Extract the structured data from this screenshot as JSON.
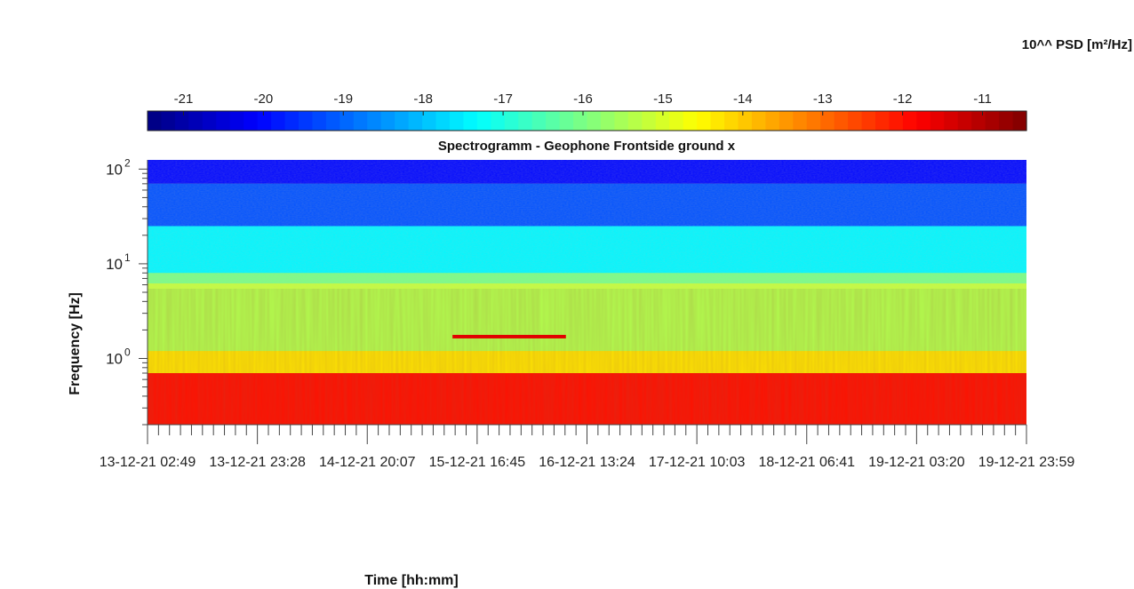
{
  "chart_data": {
    "type": "heatmap",
    "title": "Spectrogramm - Geophone Frontside ground x",
    "xlabel": "Time [hh:mm]",
    "ylabel": "Frequency [Hz]",
    "yscale": "log",
    "ylim": [
      0.2,
      125
    ],
    "xlim": [
      0,
      1
    ],
    "x_tick_labels": [
      "13-12-21  02:49",
      "13-12-21  23:28",
      "14-12-21  20:07",
      "15-12-21  16:45",
      "16-12-21  13:24",
      "17-12-21  10:03",
      "18-12-21  06:41",
      "19-12-21  03:20",
      "19-12-21  23:59"
    ],
    "y_tick_labels": [
      {
        "value": 1,
        "base": "10",
        "exp": "0"
      },
      {
        "value": 10,
        "base": "10",
        "exp": "1"
      },
      {
        "value": 100,
        "base": "10",
        "exp": "2"
      }
    ],
    "colorbar": {
      "label": "10^^ PSD [m²/Hz]",
      "min": -21.45,
      "max": -10.45,
      "ticks": [
        "-21",
        "-20",
        "-19",
        "-18",
        "-17",
        "-16",
        "-15",
        "-14",
        "-13",
        "-12",
        "-11"
      ],
      "colormap": "jet",
      "placement": "top"
    },
    "grid": false,
    "features": {
      "band_levels": [
        {
          "f_min": 70,
          "f_max": 125,
          "log_psd": -20.0
        },
        {
          "f_min": 25,
          "f_max": 70,
          "log_psd": -19.2
        },
        {
          "f_min": 8,
          "f_max": 25,
          "log_psd": -17.4
        },
        {
          "f_min": 5.4,
          "f_max": 6.2,
          "log_psd": -15.2
        },
        {
          "f_min": 1.2,
          "f_max": 5.4,
          "log_psd": -15.4
        },
        {
          "f_min": 0.7,
          "f_max": 1.2,
          "log_psd": -14.3
        },
        {
          "f_min": 0.2,
          "f_max": 0.7,
          "log_psd": -12.0
        }
      ],
      "line_events": [
        {
          "freq": 1.7,
          "t_start": 0.347,
          "t_end": 0.476,
          "log_psd": -11.5
        }
      ]
    }
  }
}
